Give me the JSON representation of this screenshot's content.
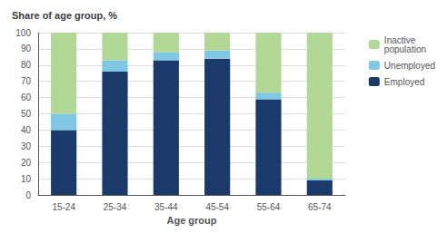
{
  "chart_data": {
    "type": "bar",
    "title": "Share of age group, %",
    "xlabel": "Age group",
    "categories": [
      "15-24",
      "25-34",
      "35-44",
      "45-54",
      "55-64",
      "65-74"
    ],
    "series": [
      {
        "name": "Employed",
        "color": "#1a3a6b",
        "values": [
          40,
          76,
          83,
          84,
          59,
          9
        ]
      },
      {
        "name": "Unemployed",
        "color": "#7ec8e3",
        "values": [
          10,
          7,
          5,
          5,
          4,
          1
        ]
      },
      {
        "name": "Inactive\npopulation",
        "color": "#b2d896",
        "values": [
          50,
          17,
          12,
          11,
          37,
          90
        ]
      }
    ],
    "stacked": true,
    "ylim": [
      0,
      100
    ],
    "yticks": [
      0,
      10,
      20,
      30,
      40,
      50,
      60,
      70,
      80,
      90,
      100
    ],
    "grid": true,
    "legend": "right"
  }
}
